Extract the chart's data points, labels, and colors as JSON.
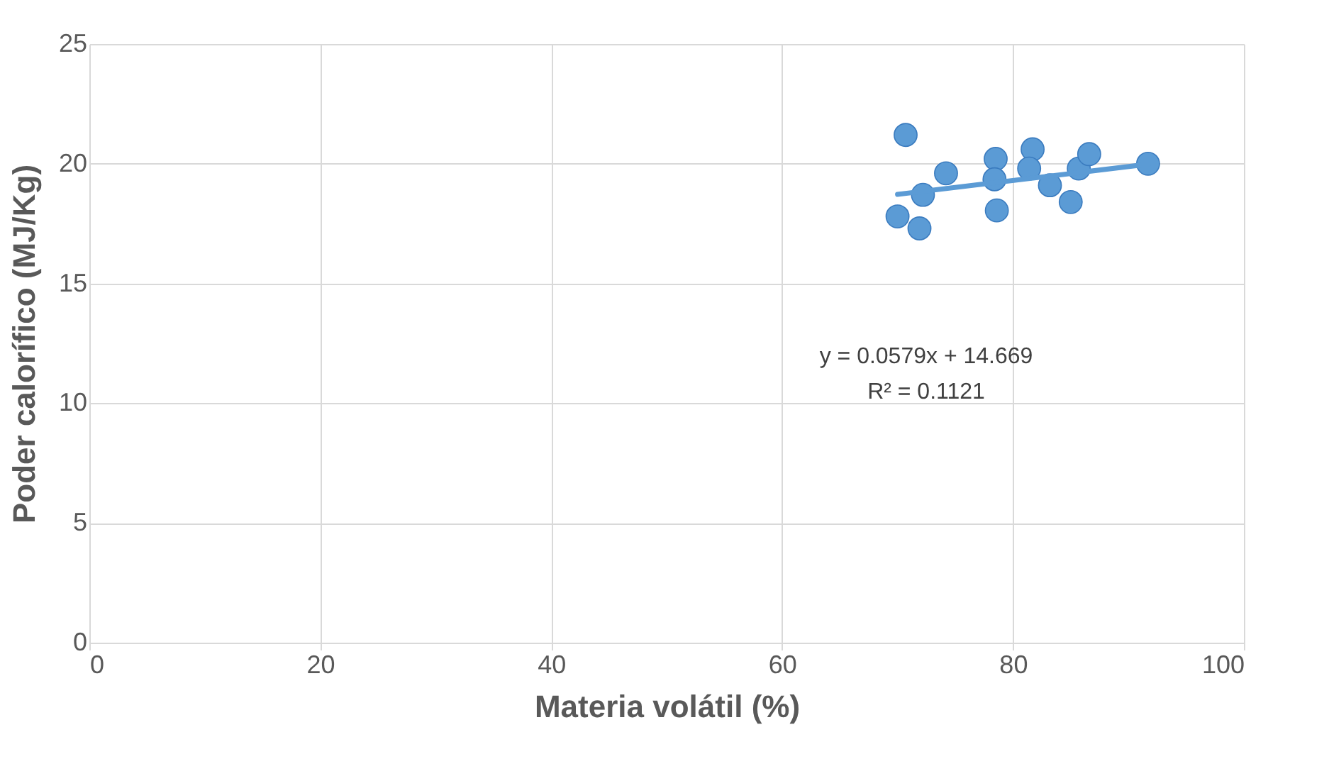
{
  "chart_data": {
    "type": "scatter",
    "xlabel": "Materia volátil (%)",
    "ylabel": "Poder calorífico (MJ/Kg)",
    "xlim": [
      0,
      100
    ],
    "xticks": [
      0,
      20,
      40,
      60,
      80,
      100
    ],
    "ylim": [
      0,
      25
    ],
    "yticks": [
      0,
      5,
      10,
      15,
      20,
      25
    ],
    "grid": true,
    "series": [
      {
        "color": "#5b9bd5",
        "marker": "circle",
        "x": [
          70.7,
          70.0,
          71.9,
          72.2,
          74.2,
          78.5,
          78.4,
          78.6,
          81.7,
          81.4,
          83.2,
          85.0,
          85.7,
          86.6,
          91.7
        ],
        "values": [
          21.2,
          17.8,
          17.3,
          18.7,
          19.6,
          20.2,
          19.35,
          18.05,
          20.6,
          19.8,
          19.1,
          18.4,
          19.8,
          20.4,
          20.0
        ]
      },
      {
        "type": "line",
        "color": "#5b9bd5",
        "marker": "none",
        "x": [
          70.0,
          91.7
        ],
        "values": [
          18.72,
          19.98
        ]
      }
    ],
    "annotations": [
      "y = 0.0579x + 14.669",
      "R² = 0.1121"
    ]
  }
}
